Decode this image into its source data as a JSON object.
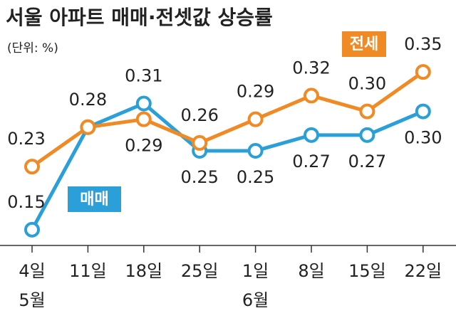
{
  "chart_data": {
    "type": "line",
    "title": "서울 아파트 매매·전셋값 상승률",
    "subtitle": "(단위: %)",
    "categories": [
      "4일",
      "11일",
      "18일",
      "25일",
      "1일",
      "8일",
      "15일",
      "22일"
    ],
    "months": [
      "5월",
      null,
      null,
      null,
      "6월",
      null,
      null,
      null
    ],
    "series": [
      {
        "name": "매매",
        "color": "#2a9fd8",
        "values": [
          0.15,
          0.28,
          0.31,
          0.25,
          0.25,
          0.27,
          0.27,
          0.3
        ],
        "value_labels": [
          "0.15",
          "0.28",
          "0.31",
          "0.25",
          "0.25",
          "0.27",
          "0.27",
          "0.30"
        ]
      },
      {
        "name": "전세",
        "color": "#f08a24",
        "values": [
          0.23,
          0.28,
          0.29,
          0.26,
          0.29,
          0.32,
          0.3,
          0.35
        ],
        "value_labels": [
          "0.23",
          null,
          "0.29",
          "0.26",
          "0.29",
          "0.32",
          "0.30",
          "0.35"
        ]
      }
    ],
    "ylim": [
      0.13,
      0.37
    ]
  }
}
